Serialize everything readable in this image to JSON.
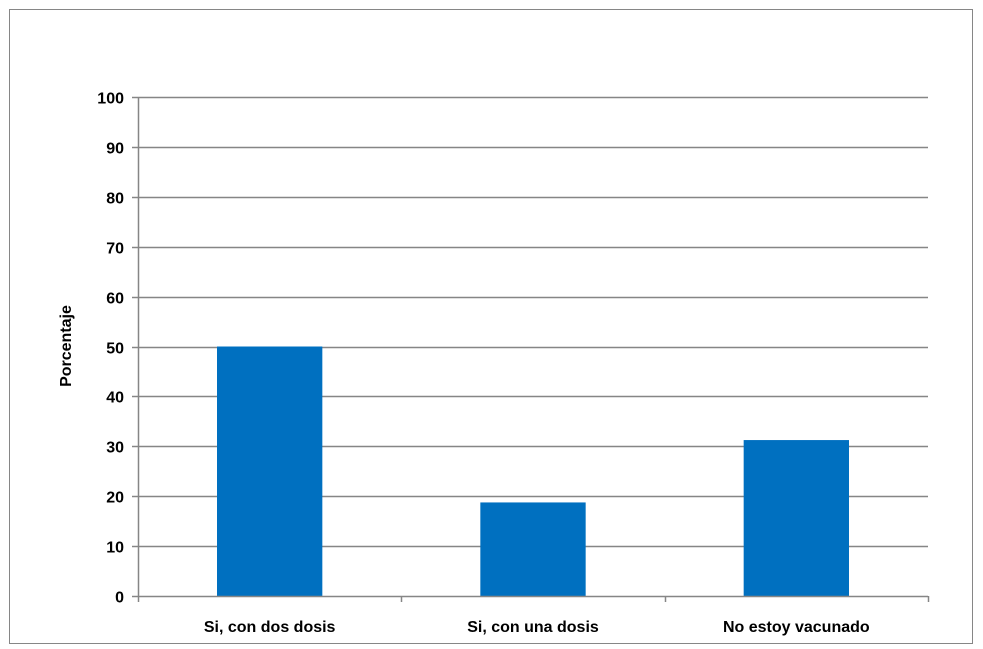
{
  "chart_data": {
    "type": "bar",
    "title": "",
    "xlabel": "",
    "ylabel": "Porcentaje",
    "categories": [
      "Si, con dos dosis",
      "Si, con una dosis",
      "No estoy vacunado"
    ],
    "values": [
      50,
      18.75,
      31.25
    ],
    "ylim": [
      0,
      100
    ],
    "yticks": [
      0,
      10,
      20,
      30,
      40,
      50,
      60,
      70,
      80,
      90,
      100
    ],
    "grid": "horizontal",
    "legend": "none",
    "bar_color": "#0070C0",
    "grid_color": "#868686",
    "frame_color": "#868686"
  }
}
